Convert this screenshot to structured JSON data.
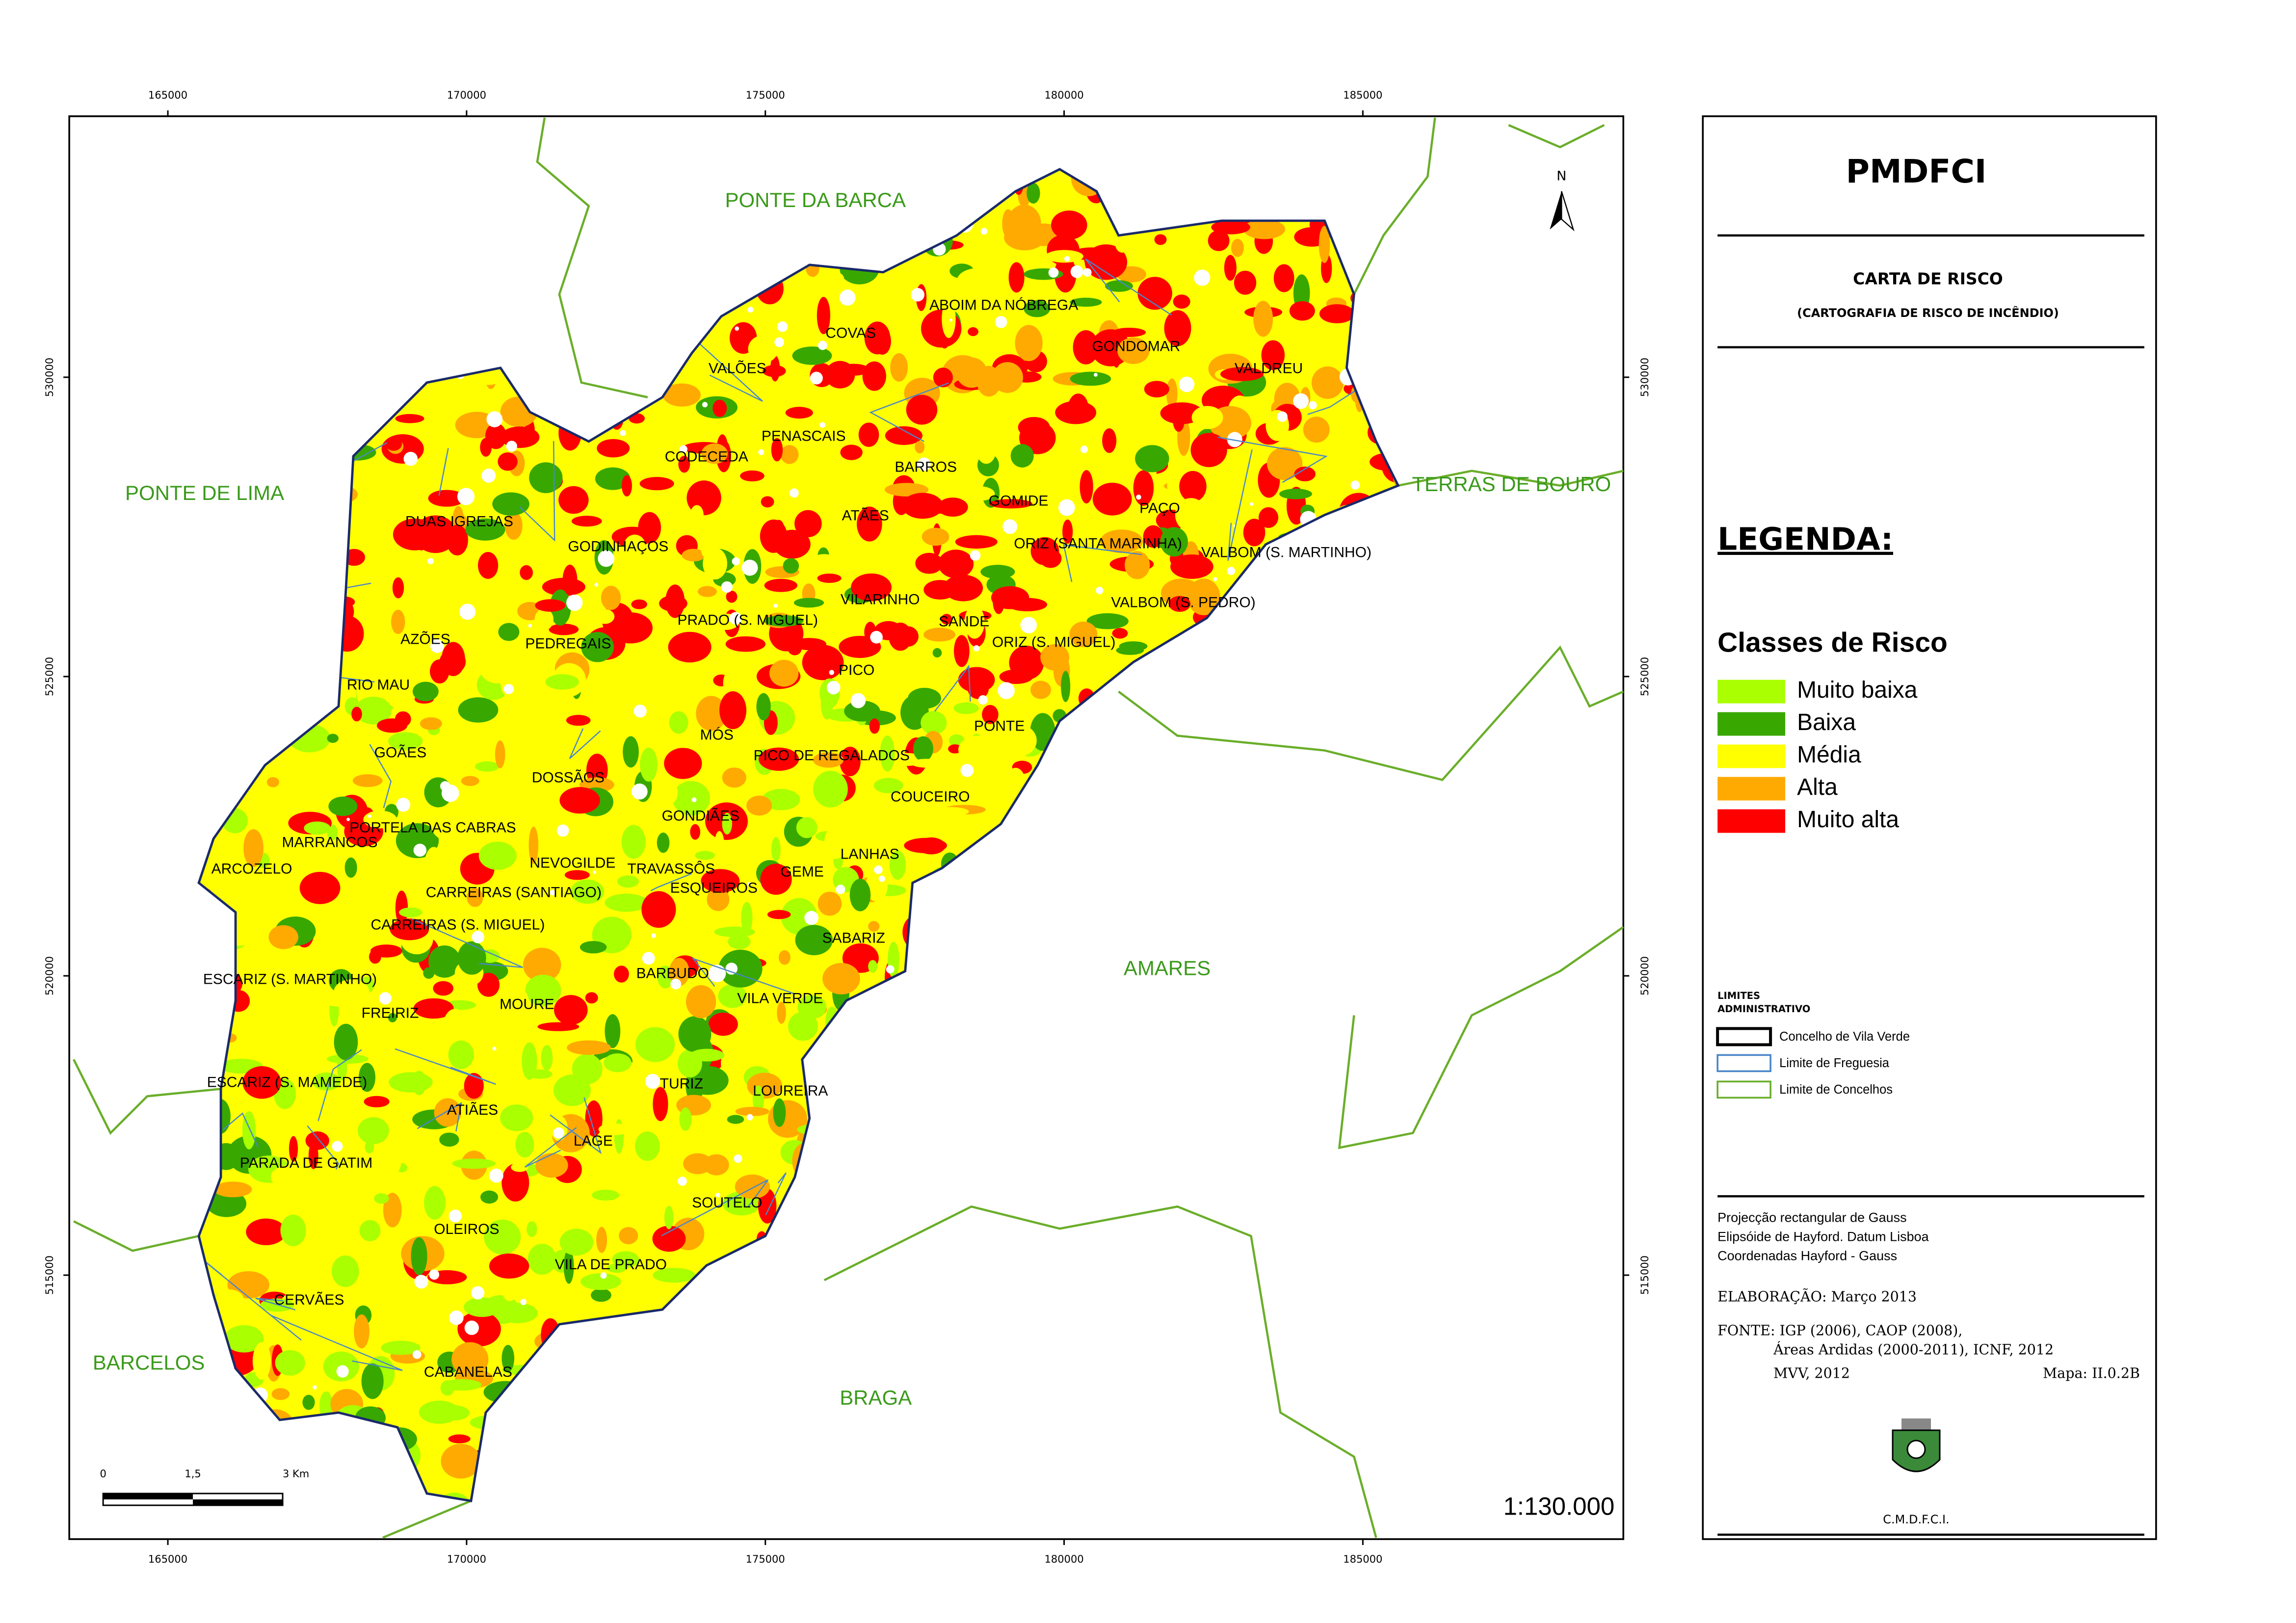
{
  "map": {
    "xlim": [
      163350,
      189360
    ],
    "ylim": [
      510590,
      534360
    ],
    "xticks": [
      165000,
      170000,
      175000,
      180000,
      185000
    ],
    "yticks": [
      515000,
      520000,
      525000,
      530000
    ],
    "north": "N",
    "scale": "1:130.000",
    "scale_bar": [
      "0",
      "1,5",
      "3 Km"
    ],
    "neighbors": [
      "PONTE DA BARCA",
      "PONTE DE LIMA",
      "TERRAS DE BOURO",
      "AMARES",
      "BARCELOS",
      "BRAGA"
    ],
    "parishes": [
      "ABOIM DA NÓBREGA",
      "COVAS",
      "GONDOMAR",
      "VALDREU",
      "VALÕES",
      "PENASCAIS",
      "CODECEDA",
      "BARROS",
      "GOMIDE",
      "PAÇO",
      "ATÃES",
      "DUAS IGREJAS",
      "ORIZ (SANTA MARINHA)",
      "VALBOM (S. MARTINHO)",
      "GODINHAÇOS",
      "VILARINHO",
      "VALBOM (S. PEDRO)",
      "PRADO (S. MIGUEL)",
      "SANDE",
      "ORIZ (S. MIGUEL)",
      "AZÕES",
      "PEDREGAIS",
      "PICO",
      "RIO MAU",
      "PONTE",
      "MÓS",
      "GOÃES",
      "PICO DE REGALADOS",
      "DOSSÃOS",
      "COUCEIRO",
      "GONDIÃES",
      "PORTELA DAS CABRAS",
      "MARRANCOS",
      "LANHAS",
      "NEVOGILDE",
      "TRAVASSÔS",
      "ARCOZELO",
      "GEME",
      "CARREIRAS (SANTIAGO)",
      "ESQUEIROS",
      "CARREIRAS (S. MIGUEL)",
      "SABARIZ",
      "ESCARIZ (S. MARTINHO)",
      "BARBUDO",
      "VILA VERDE",
      "MOURE",
      "FREIRIZ",
      "ESCARIZ (S. MAMEDE)",
      "TURIZ",
      "LOUREIRA",
      "ATIÃES",
      "LAGE",
      "PARADA DE GATIM",
      "SOUTELO",
      "OLEIROS",
      "VILA DE PRADO",
      "CERVÃES",
      "CABANELAS"
    ]
  },
  "panel": {
    "title": "PMDFCI",
    "subtitle": "CARTA DE RISCO",
    "subtitle2": "(CARTOGRAFIA DE RISCO DE INCÊNDIO)",
    "legend_title": "LEGENDA:",
    "classes_title": "Classes de Risco",
    "classes": [
      {
        "name": "Muito baixa",
        "color": "#aaff00"
      },
      {
        "name": "Baixa",
        "color": "#38a800"
      },
      {
        "name": "Média",
        "color": "#ffff00"
      },
      {
        "name": "Alta",
        "color": "#ffaa00"
      },
      {
        "name": "Muito alta",
        "color": "#ff0000"
      }
    ],
    "limits_title": [
      "LIMITES",
      "ADMINISTRATIVO"
    ],
    "limits": [
      {
        "name": "Concelho de Vila Verde",
        "color": "#000000"
      },
      {
        "name": "Limite de Freguesia",
        "color": "#4a86c8"
      },
      {
        "name": "Limite de Concelhos",
        "color": "#6aae2a"
      }
    ],
    "projection": [
      "Projecção rectangular de Gauss",
      "Elipsóide de Hayford. Datum Lisboa",
      "Coordenadas Hayford - Gauss"
    ],
    "elaboration": "ELABORAÇÃO: Março 2013",
    "source": [
      "FONTE: IGP (2006), CAOP (2008),",
      "Áreas Ardidas (2000-2011), ICNF, 2012",
      "MVV, 2012"
    ],
    "map_id": "Mapa: II.0.2B",
    "footer": "C.M.D.F.C.I."
  }
}
